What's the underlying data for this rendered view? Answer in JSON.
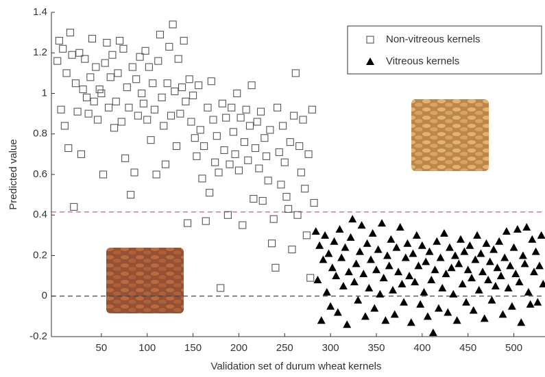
{
  "chart_data": {
    "type": "scatter",
    "x_label": "Validation set of durum wheat kernels",
    "y_label": "Predicted value",
    "xlim": [
      -4.5,
      534
    ],
    "ylim": [
      -0.2,
      1.4
    ],
    "xticks": [
      50,
      100,
      150,
      200,
      250,
      300,
      350,
      400,
      450,
      500
    ],
    "yticks": [
      -0.2,
      0,
      0.2,
      0.4,
      0.6,
      0.8,
      1,
      1.2,
      1.4
    ],
    "hlines": [
      {
        "value": 0.415,
        "color": "#e06a6a"
      },
      {
        "value": 0,
        "color": "#444444"
      }
    ],
    "series": [
      {
        "name": "Non-vitreous kernels",
        "marker": "square",
        "color": "#555555",
        "x": [
          2,
          4,
          6,
          8,
          10,
          12,
          14,
          16,
          18,
          20,
          22,
          24,
          26,
          28,
          30,
          32,
          34,
          36,
          38,
          40,
          42,
          44,
          46,
          48,
          50,
          52,
          54,
          56,
          58,
          60,
          62,
          64,
          66,
          68,
          70,
          72,
          74,
          76,
          78,
          80,
          82,
          84,
          86,
          88,
          90,
          92,
          94,
          96,
          98,
          100,
          102,
          104,
          106,
          108,
          110,
          112,
          114,
          116,
          118,
          120,
          122,
          124,
          126,
          128,
          130,
          132,
          134,
          136,
          138,
          140,
          142,
          144,
          146,
          148,
          150,
          152,
          154,
          156,
          158,
          160,
          162,
          164,
          166,
          168,
          170,
          172,
          174,
          176,
          178,
          180,
          182,
          184,
          186,
          188,
          190,
          192,
          194,
          196,
          198,
          200,
          202,
          204,
          206,
          208,
          210,
          212,
          214,
          216,
          218,
          220,
          222,
          224,
          226,
          228,
          230,
          232,
          234,
          236,
          238,
          240,
          242,
          244,
          246,
          248,
          250,
          252,
          254,
          256,
          258,
          260,
          262,
          264,
          266,
          268,
          270,
          272,
          274,
          276,
          278,
          280,
          282
        ],
        "values": [
          1.16,
          1.26,
          0.92,
          1.22,
          0.84,
          1.1,
          0.73,
          1.3,
          1.19,
          0.44,
          1.05,
          0.91,
          1.2,
          0.7,
          1.02,
          1.17,
          0.98,
          0.9,
          1.08,
          1.27,
          0.96,
          1.13,
          0.87,
          1.02,
          1.0,
          0.6,
          1.15,
          1.25,
          0.93,
          1.08,
          1.19,
          0.83,
          0.96,
          1.1,
          1.26,
          0.86,
          1.22,
          0.68,
          1.03,
          0.93,
          0.5,
          1.13,
          0.61,
          1.07,
          0.89,
          1.18,
          1.0,
          0.95,
          1.21,
          0.87,
          1.13,
          0.77,
          1.05,
          0.92,
          0.6,
          1.16,
          1.29,
          0.98,
          0.84,
          0.65,
          1.05,
          1.23,
          0.89,
          1.34,
          1.01,
          0.74,
          1.17,
          0.9,
          1.03,
          1.26,
          0.96,
          0.36,
          1.07,
          0.86,
          0.99,
          0.78,
          0.69,
          1.04,
          0.82,
          0.58,
          0.74,
          0.37,
          0.93,
          0.51,
          1.06,
          0.87,
          0.66,
          0.79,
          0.61,
          0.04,
          0.95,
          0.72,
          0.88,
          0.4,
          0.65,
          0.93,
          0.81,
          0.7,
          1.0,
          0.62,
          0.88,
          0.35,
          0.76,
          0.92,
          0.67,
          0.84,
          1.04,
          0.48,
          0.73,
          0.86,
          0.63,
          0.91,
          0.47,
          0.78,
          0.69,
          0.57,
          0.82,
          0.26,
          0.38,
          0.14,
          0.93,
          0.71,
          0.55,
          0.84,
          0.66,
          0.49,
          0.43,
          0.76,
          0.23,
          0.89,
          1.1,
          0.4,
          0.74,
          0.61,
          0.87,
          0.53,
          0.3,
          0.7,
          0.09,
          0.92,
          0.46
        ]
      },
      {
        "name": "Vitreous kernels",
        "marker": "triangle",
        "color": "#000000",
        "x": [
          284,
          286,
          288,
          290,
          292,
          294,
          296,
          298,
          300,
          302,
          304,
          306,
          308,
          310,
          312,
          314,
          316,
          318,
          320,
          322,
          324,
          326,
          328,
          330,
          332,
          334,
          336,
          338,
          340,
          342,
          344,
          346,
          348,
          350,
          352,
          354,
          356,
          358,
          360,
          362,
          364,
          366,
          368,
          370,
          372,
          374,
          376,
          378,
          380,
          382,
          384,
          386,
          388,
          390,
          392,
          394,
          396,
          398,
          400,
          402,
          404,
          406,
          408,
          410,
          412,
          414,
          416,
          418,
          420,
          422,
          424,
          426,
          428,
          430,
          432,
          434,
          436,
          438,
          440,
          442,
          444,
          446,
          448,
          450,
          452,
          454,
          456,
          458,
          460,
          462,
          464,
          466,
          468,
          470,
          472,
          474,
          476,
          478,
          480,
          482,
          484,
          486,
          488,
          490,
          492,
          494,
          496,
          498,
          500,
          502,
          504,
          506,
          508,
          510,
          512,
          514,
          516,
          518,
          520,
          522,
          524,
          526,
          528,
          530,
          532
        ],
        "values": [
          0.32,
          0.08,
          0.25,
          -0.12,
          0.18,
          0.3,
          0.02,
          0.21,
          -0.05,
          0.14,
          0.27,
          0.1,
          -0.08,
          0.33,
          0.19,
          0.05,
          0.24,
          -0.14,
          0.12,
          0.29,
          0.38,
          0.07,
          0.16,
          -0.02,
          0.22,
          0.35,
          0.11,
          -0.1,
          0.26,
          0.04,
          0.18,
          0.31,
          -0.06,
          0.13,
          0.23,
          0.01,
          0.36,
          0.09,
          -0.12,
          0.2,
          0.15,
          0.28,
          0.03,
          -0.09,
          0.24,
          0.12,
          0.34,
          0.06,
          -0.03,
          0.19,
          0.26,
          0.1,
          -0.13,
          0.21,
          0.07,
          0.3,
          0.15,
          -0.04,
          0.25,
          0.02,
          0.17,
          -0.1,
          0.22,
          0.08,
          -0.18,
          0.13,
          0.27,
          -0.06,
          0.19,
          0.04,
          0.31,
          0.11,
          -0.08,
          0.24,
          0.14,
          0.01,
          0.2,
          -0.12,
          0.16,
          0.28,
          0.06,
          0.22,
          -0.03,
          0.13,
          0.25,
          0.09,
          -0.07,
          0.18,
          0.3,
          0.03,
          0.21,
          0.12,
          -0.11,
          0.26,
          0.08,
          0.17,
          -0.02,
          0.23,
          0.05,
          0.14,
          0.27,
          0.1,
          -0.09,
          0.19,
          0.32,
          0.04,
          0.15,
          -0.05,
          0.24,
          0.11,
          0.33,
          0.07,
          -0.13,
          0.2,
          0.16,
          0.34,
          0.02,
          -0.04,
          0.28,
          0.12,
          0.22,
          -0.03,
          0.15,
          0.3,
          0.06
        ]
      }
    ]
  }
}
